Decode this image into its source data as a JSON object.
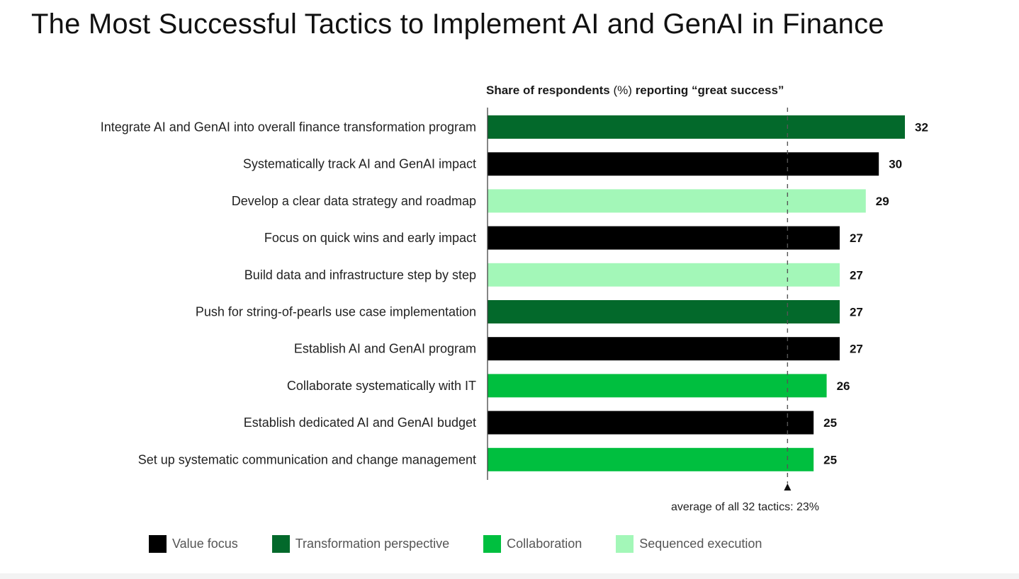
{
  "title": "The Most Successful Tactics to Implement AI and GenAI in Finance",
  "chart_data": {
    "type": "bar",
    "orientation": "horizontal",
    "title_prefix": "Share of respondents",
    "title_unit": "(%)",
    "title_suffix": "reporting “great success”",
    "xlim": [
      0,
      32
    ],
    "average": {
      "value": 23,
      "label": "average of all 32 tactics: 23%"
    },
    "categories": [
      "Integrate AI and GenAI into overall finance transformation program",
      "Systematically track AI and GenAI impact",
      "Develop a clear data strategy and roadmap",
      "Focus on quick wins and early impact",
      "Build data and infrastructure step by step",
      "Push for string-of-pearls use case implementation",
      "Establish AI and GenAI program",
      "Collaborate systematically with IT",
      "Establish dedicated AI and GenAI budget",
      "Set up systematic communication and change management"
    ],
    "values": [
      32,
      30,
      29,
      27,
      27,
      27,
      27,
      26,
      25,
      25
    ],
    "groups": [
      "Transformation perspective",
      "Value focus",
      "Sequenced execution",
      "Value focus",
      "Sequenced execution",
      "Transformation perspective",
      "Value focus",
      "Collaboration",
      "Value focus",
      "Collaboration"
    ],
    "legend": [
      {
        "name": "Value focus",
        "color": "#000000"
      },
      {
        "name": "Transformation perspective",
        "color": "#03692b"
      },
      {
        "name": "Collaboration",
        "color": "#00bf3f"
      },
      {
        "name": "Sequenced execution",
        "color": "#a3f7b8"
      }
    ],
    "grid": false
  }
}
